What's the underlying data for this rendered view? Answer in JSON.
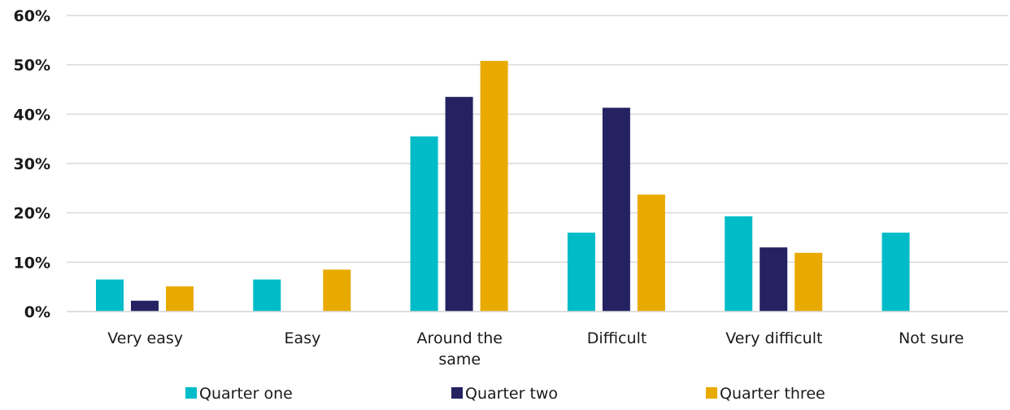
{
  "chart_data": {
    "type": "bar",
    "categories": [
      [
        "Very easy"
      ],
      [
        "Easy"
      ],
      [
        "Around the",
        "same"
      ],
      [
        "Difficult"
      ],
      [
        "Very difficult"
      ],
      [
        "Not sure"
      ]
    ],
    "series": [
      {
        "name": "Quarter one",
        "color": "#00BCC8",
        "values": [
          6.5,
          6.5,
          35.5,
          16,
          19.3,
          16
        ]
      },
      {
        "name": "Quarter two",
        "color": "#252262",
        "values": [
          2.2,
          0,
          43.5,
          41.3,
          13,
          0
        ]
      },
      {
        "name": "Quarter three",
        "color": "#E9AA00",
        "values": [
          5.1,
          8.5,
          50.8,
          23.7,
          11.9,
          0
        ]
      }
    ],
    "ylim": [
      0,
      60
    ],
    "yticks": [
      0,
      10,
      20,
      30,
      40,
      50,
      60
    ],
    "ytick_labels": [
      "0%",
      "10%",
      "20%",
      "30%",
      "40%",
      "50%",
      "60%"
    ],
    "grid": true,
    "legend_position": "bottom",
    "title": "",
    "xlabel": "",
    "ylabel": ""
  }
}
